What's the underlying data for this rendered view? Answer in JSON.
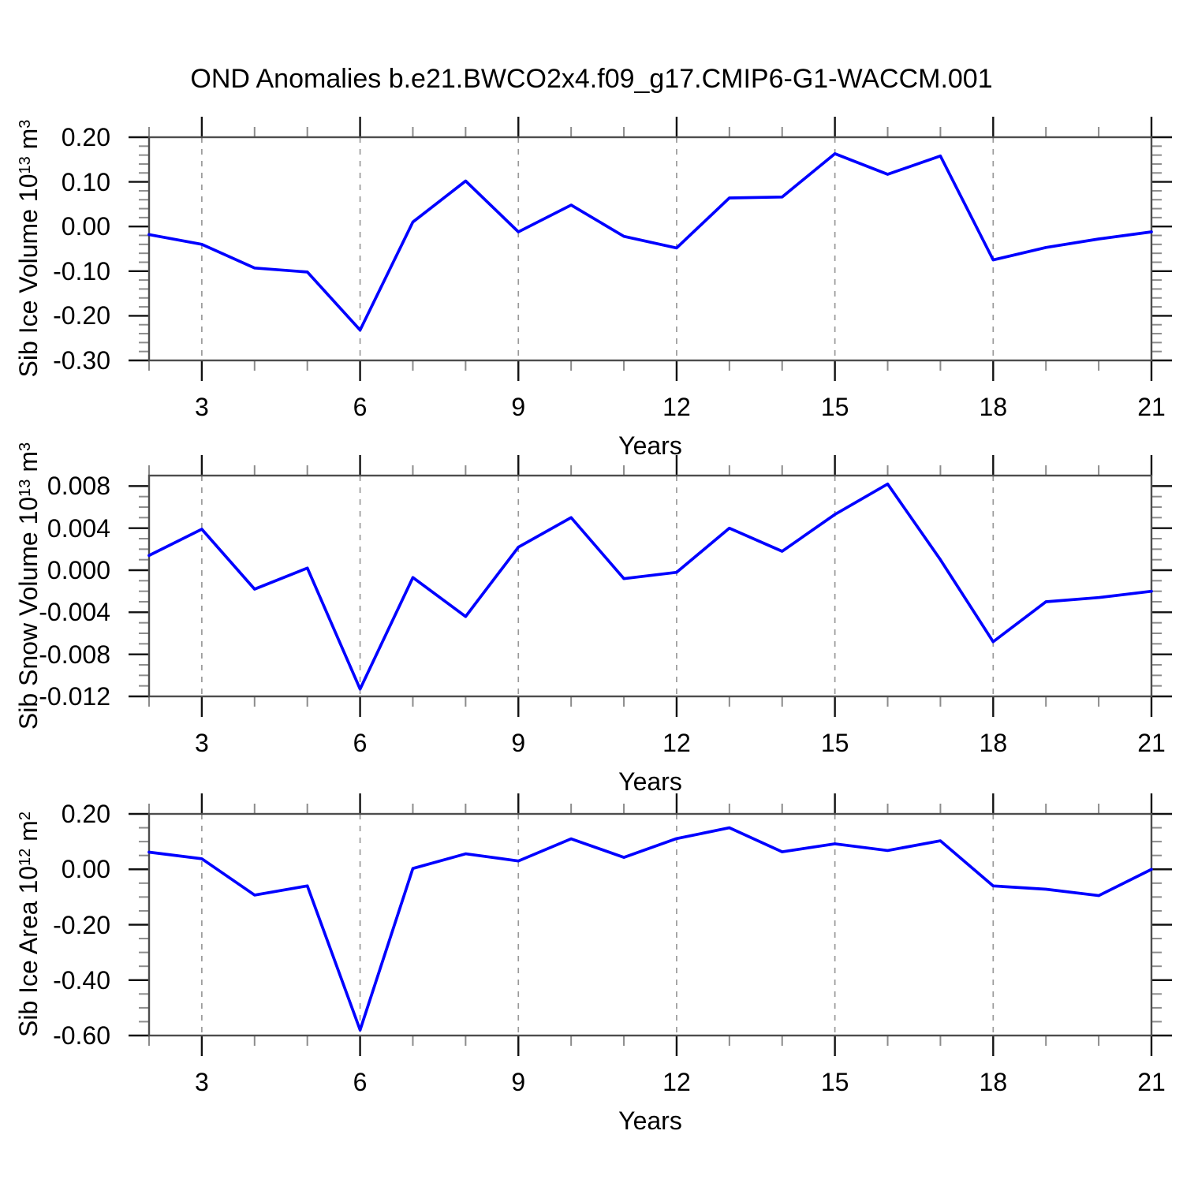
{
  "title": "OND Anomalies b.e21.BWCO2x4.f09_g17.CMIP6-G1-WACCM.001",
  "figure_colors": {
    "background": "#ffffff",
    "line": "#0000ff",
    "grid": "#999999",
    "box": "#4d4d4d",
    "major_tick": "#111111",
    "minor_tick": "#8c8c8c",
    "text": "#000000"
  },
  "chart_data": [
    {
      "type": "line",
      "name": "sib-ice-volume",
      "ylabel": "Sib Ice Volume 10^13 m^3",
      "ylabel_parts": {
        "base": "Sib Ice Volume 10",
        "exp": "13",
        "unit": " m",
        "unit_exp": "3"
      },
      "xlabel": "Years",
      "x": [
        2,
        3,
        4,
        5,
        6,
        7,
        8,
        9,
        10,
        11,
        12,
        13,
        14,
        15,
        16,
        17,
        18,
        19,
        20,
        21
      ],
      "values": [
        -0.018,
        -0.04,
        -0.093,
        -0.102,
        -0.232,
        0.01,
        0.102,
        -0.012,
        0.048,
        -0.022,
        -0.048,
        0.064,
        0.066,
        0.163,
        0.117,
        0.158,
        -0.075,
        -0.047,
        -0.028,
        -0.012
      ],
      "xlim": [
        2,
        21
      ],
      "ylim": [
        -0.3,
        0.2
      ],
      "xticks": [
        3,
        6,
        9,
        12,
        15,
        18,
        21
      ],
      "xtick_minor_step": 1,
      "yticks": [
        {
          "v": 0.2,
          "label": "0.20"
        },
        {
          "v": 0.1,
          "label": "0.10"
        },
        {
          "v": 0.0,
          "label": "0.00"
        },
        {
          "v": -0.1,
          "label": "-0.10"
        },
        {
          "v": -0.2,
          "label": "-0.20"
        },
        {
          "v": -0.3,
          "label": "-0.30"
        }
      ],
      "ytick_minor_step": 0.02,
      "gridlines_x": [
        3,
        6,
        9,
        12,
        15,
        18
      ],
      "grid_style": "vertical-dashed",
      "legend": "none"
    },
    {
      "type": "line",
      "name": "sib-snow-volume",
      "ylabel": "Sib Snow Volume 10^13 m^3",
      "ylabel_parts": {
        "base": "Sib Snow Volume 10",
        "exp": "13",
        "unit": " m",
        "unit_exp": "3"
      },
      "xlabel": "Years",
      "x": [
        2,
        3,
        4,
        5,
        6,
        7,
        8,
        9,
        10,
        11,
        12,
        13,
        14,
        15,
        16,
        17,
        18,
        19,
        20,
        21
      ],
      "values": [
        0.0014,
        0.0039,
        -0.0018,
        0.0002,
        -0.0113,
        -0.0007,
        -0.0044,
        0.0022,
        0.005,
        -0.0008,
        -0.0002,
        0.004,
        0.0018,
        0.0053,
        0.0082,
        0.001,
        -0.0068,
        -0.003,
        -0.0026,
        -0.002
      ],
      "xlim": [
        2,
        21
      ],
      "ylim": [
        -0.012,
        0.009
      ],
      "xticks": [
        3,
        6,
        9,
        12,
        15,
        18,
        21
      ],
      "xtick_minor_step": 1,
      "yticks": [
        {
          "v": 0.008,
          "label": "0.008"
        },
        {
          "v": 0.004,
          "label": "0.004"
        },
        {
          "v": 0.0,
          "label": "0.000"
        },
        {
          "v": -0.004,
          "label": "-0.004"
        },
        {
          "v": -0.008,
          "label": "-0.008"
        },
        {
          "v": -0.012,
          "label": "-0.012"
        }
      ],
      "ytick_minor_step": 0.001,
      "gridlines_x": [
        3,
        6,
        9,
        12,
        15,
        18
      ],
      "grid_style": "vertical-dashed",
      "legend": "none"
    },
    {
      "type": "line",
      "name": "sib-ice-area",
      "ylabel": "Sib Ice Area 10^12 m^2",
      "ylabel_parts": {
        "base": "Sib Ice Area 10",
        "exp": "12",
        "unit": " m",
        "unit_exp": "2"
      },
      "xlabel": "Years",
      "x": [
        2,
        3,
        4,
        5,
        6,
        7,
        8,
        9,
        10,
        11,
        12,
        13,
        14,
        15,
        16,
        17,
        18,
        19,
        20,
        21
      ],
      "values": [
        0.062,
        0.038,
        -0.093,
        -0.06,
        -0.58,
        0.003,
        0.056,
        0.03,
        0.11,
        0.043,
        0.111,
        0.15,
        0.063,
        0.092,
        0.068,
        0.103,
        -0.06,
        -0.072,
        -0.095,
        0.0
      ],
      "xlim": [
        2,
        21
      ],
      "ylim": [
        -0.6,
        0.2
      ],
      "xticks": [
        3,
        6,
        9,
        12,
        15,
        18,
        21
      ],
      "xtick_minor_step": 1,
      "yticks": [
        {
          "v": 0.2,
          "label": "0.20"
        },
        {
          "v": 0.0,
          "label": "0.00"
        },
        {
          "v": -0.2,
          "label": "-0.20"
        },
        {
          "v": -0.4,
          "label": "-0.40"
        },
        {
          "v": -0.6,
          "label": "-0.60"
        }
      ],
      "ytick_minor_step": 0.05,
      "gridlines_x": [
        3,
        6,
        9,
        12,
        15,
        18
      ],
      "grid_style": "vertical-dashed",
      "legend": "none"
    }
  ]
}
